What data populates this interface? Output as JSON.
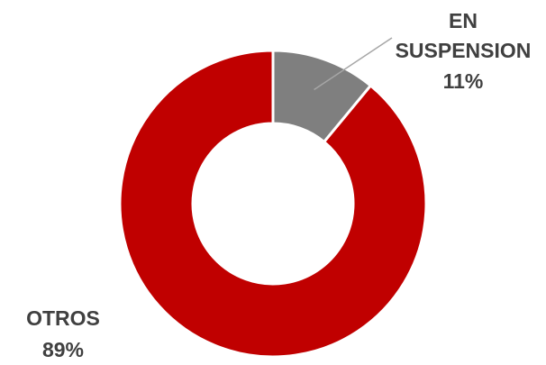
{
  "chart_data": {
    "type": "pie",
    "variant": "donut",
    "title": "",
    "legend": "none",
    "slices": [
      {
        "label_lines": [
          "EN",
          "SUSPENSION"
        ],
        "percent_text": "11%",
        "value": 11,
        "color": "#7f7f7f"
      },
      {
        "label_lines": [
          "OTROS"
        ],
        "percent_text": "89%",
        "value": 89,
        "color": "#c00000"
      }
    ],
    "leader_line_color": "#a6a6a6",
    "slice_border_color": "#ffffff"
  }
}
